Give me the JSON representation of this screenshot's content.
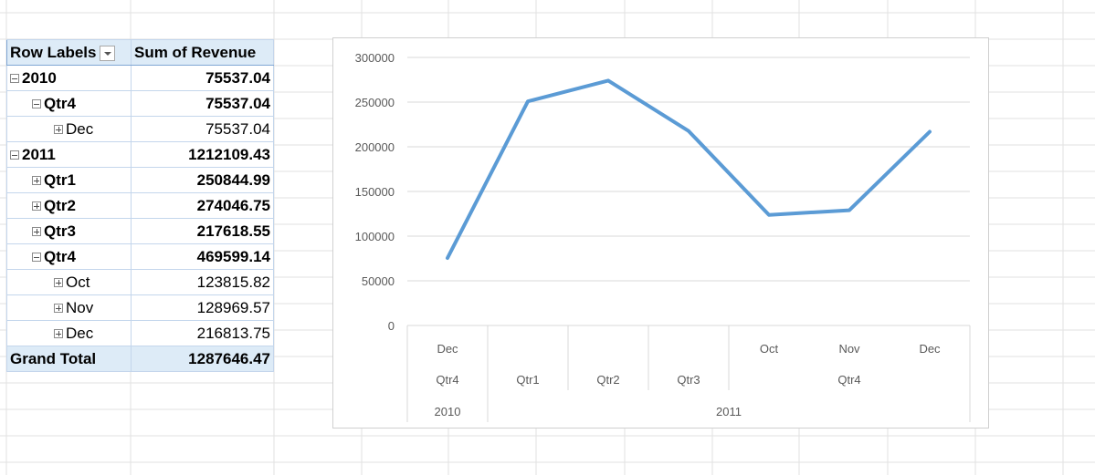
{
  "pivot": {
    "header": {
      "row_labels": "Row Labels",
      "sum_label": "Sum of Revenue"
    },
    "rows": [
      {
        "label": "2010",
        "value": "75537.04"
      },
      {
        "label": "Qtr4",
        "value": "75537.04"
      },
      {
        "label": "Dec",
        "value": "75537.04"
      },
      {
        "label": "2011",
        "value": "1212109.43"
      },
      {
        "label": "Qtr1",
        "value": "250844.99"
      },
      {
        "label": "Qtr2",
        "value": "274046.75"
      },
      {
        "label": "Qtr3",
        "value": "217618.55"
      },
      {
        "label": "Qtr4",
        "value": "469599.14"
      },
      {
        "label": "Oct",
        "value": "123815.82"
      },
      {
        "label": "Nov",
        "value": "128969.57"
      },
      {
        "label": "Dec",
        "value": "216813.75"
      }
    ],
    "total": {
      "label": "Grand Total",
      "value": "1287646.47"
    }
  },
  "chart_data": {
    "type": "line",
    "title": "",
    "xlabel": "",
    "ylabel": "",
    "ylim": [
      0,
      300000
    ],
    "yticks": [
      "0",
      "50000",
      "100000",
      "150000",
      "200000",
      "250000",
      "300000"
    ],
    "grid": true,
    "legend": "none",
    "color": "#5b9bd5",
    "categories": [
      {
        "month": "Dec",
        "quarter": "Qtr4",
        "year": "2010"
      },
      {
        "month": "",
        "quarter": "Qtr1",
        "year": "2011"
      },
      {
        "month": "",
        "quarter": "Qtr2",
        "year": "2011"
      },
      {
        "month": "",
        "quarter": "Qtr3",
        "year": "2011"
      },
      {
        "month": "Oct",
        "quarter": "Qtr4",
        "year": "2011"
      },
      {
        "month": "Nov",
        "quarter": "Qtr4",
        "year": "2011"
      },
      {
        "month": "Dec",
        "quarter": "Qtr4",
        "year": "2011"
      }
    ],
    "year_labels": [
      "2010",
      "2011"
    ],
    "quarter_labels": [
      "Qtr4",
      "Qtr1",
      "Qtr2",
      "Qtr3",
      "Qtr4"
    ],
    "month_labels": [
      "Dec",
      "Oct",
      "Nov",
      "Dec"
    ],
    "values": [
      75537.04,
      250844.99,
      274046.75,
      217618.55,
      123815.82,
      128969.57,
      216813.75
    ]
  }
}
